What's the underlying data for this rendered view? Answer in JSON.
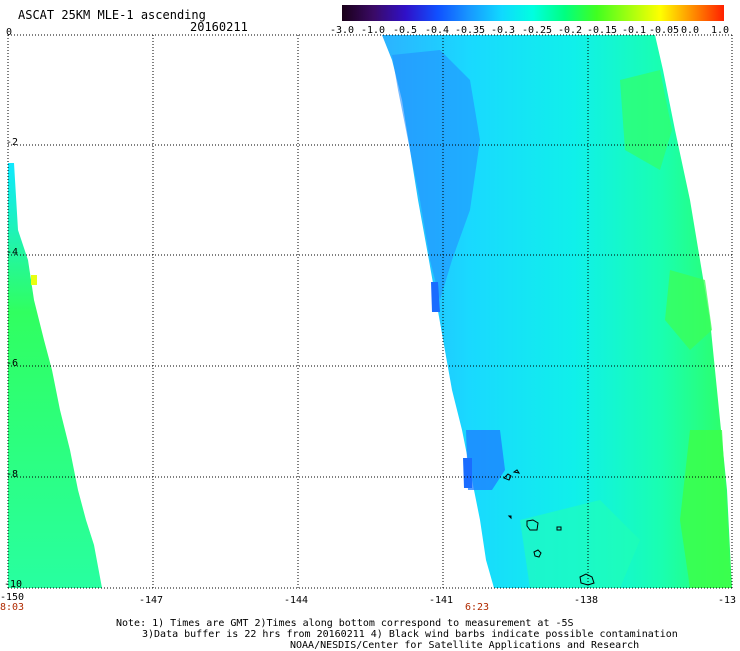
{
  "header": {
    "title": "ASCAT 25KM MLE-1 ascending",
    "date": "20160211"
  },
  "colorbar": {
    "labels": [
      "-3.0",
      "-1.0",
      "-0.5",
      "-0.4",
      "-0.35",
      "-0.3",
      "-0.25",
      "-0.2",
      "-0.15",
      "-0.1",
      "-0.05",
      "0.0",
      "1.0"
    ],
    "colors": [
      "#1a0018",
      "#3a0a66",
      "#3010c8",
      "#1050ff",
      "#1898ff",
      "#10d8ff",
      "#00ffe0",
      "#00ff80",
      "#40ff20",
      "#a0ff10",
      "#ffff00",
      "#ff9000",
      "#ff2000"
    ]
  },
  "axes": {
    "lat_labels": [
      "0",
      "-2",
      "-4",
      "-6",
      "-8",
      "-10"
    ],
    "lon_labels": [
      "-150",
      "-147",
      "-144",
      "-141",
      "-138",
      "-13"
    ],
    "time_labels": [
      "8:03",
      "6:23"
    ]
  },
  "notes": {
    "line1": "Note: 1) Times are GMT 2)Times along bottom correspond to measurement at -5S",
    "line2": "3)Data buffer is 22 hrs from 20160211 4) Black wind barbs indicate possible contamination",
    "line3": "NOAA/NESDIS/Center for Satellite Applications and Research"
  }
}
